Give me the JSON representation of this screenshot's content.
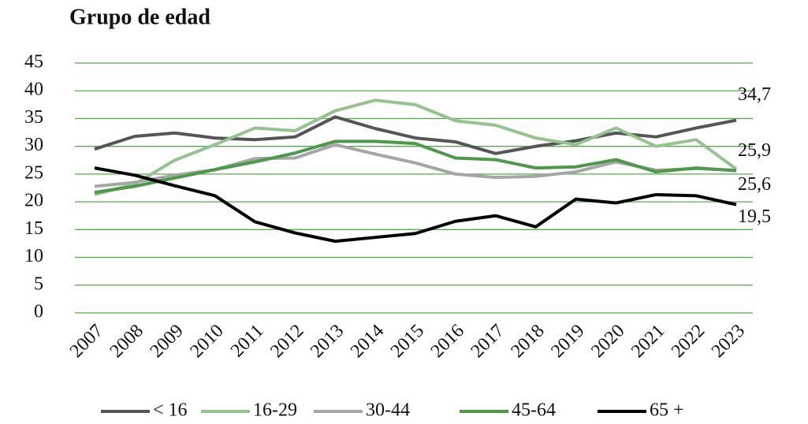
{
  "chart_data": {
    "type": "line",
    "title": "Grupo de edad",
    "categories": [
      "2007",
      "2008",
      "2009",
      "2010",
      "2011",
      "2012",
      "2013",
      "2014",
      "2015",
      "2016",
      "2017",
      "2018",
      "2019",
      "2020",
      "2021",
      "2022",
      "2023"
    ],
    "series": [
      {
        "name": "< 16",
        "color": "#555555",
        "values": [
          29.5,
          31.8,
          32.4,
          31.5,
          31.2,
          31.7,
          35.3,
          33.2,
          31.5,
          30.8,
          28.7,
          30.0,
          31.0,
          32.4,
          31.7,
          33.3,
          34.7
        ],
        "value_labels": [
          null,
          null,
          null,
          null,
          null,
          null,
          null,
          null,
          null,
          null,
          null,
          null,
          null,
          null,
          null,
          null,
          "34,7"
        ]
      },
      {
        "name": "16-29",
        "color": "#93c48e",
        "values": [
          21.3,
          23.2,
          27.5,
          30.3,
          33.3,
          32.8,
          36.4,
          38.3,
          37.5,
          34.6,
          33.8,
          31.5,
          30.3,
          33.3,
          30.0,
          31.2,
          25.9
        ],
        "value_labels": [
          null,
          null,
          null,
          null,
          null,
          null,
          null,
          null,
          null,
          null,
          null,
          null,
          null,
          null,
          null,
          null,
          "25,9"
        ]
      },
      {
        "name": "30-44",
        "color": "#a6a6a6",
        "values": [
          22.8,
          23.5,
          24.8,
          25.8,
          27.8,
          27.9,
          30.3,
          28.6,
          27.0,
          25.0,
          24.4,
          24.6,
          25.4,
          27.2,
          25.7,
          26.0,
          25.7
        ]
      },
      {
        "name": "45-64",
        "color": "#4a9a48",
        "values": [
          21.7,
          22.8,
          24.3,
          25.8,
          27.2,
          28.8,
          30.9,
          30.9,
          30.5,
          27.9,
          27.6,
          26.1,
          26.3,
          27.6,
          25.4,
          26.1,
          25.6
        ],
        "value_labels": [
          null,
          null,
          null,
          null,
          null,
          null,
          null,
          null,
          null,
          null,
          null,
          null,
          null,
          null,
          null,
          null,
          "25,6"
        ]
      },
      {
        "name": "65 +",
        "color": "#000000",
        "values": [
          26.1,
          24.8,
          22.9,
          21.1,
          16.4,
          14.4,
          12.9,
          13.6,
          14.3,
          16.5,
          17.5,
          15.5,
          20.5,
          19.8,
          21.3,
          21.1,
          19.5
        ],
        "value_labels": [
          null,
          null,
          null,
          null,
          null,
          null,
          null,
          null,
          null,
          null,
          null,
          null,
          null,
          null,
          null,
          null,
          "19,5"
        ]
      }
    ],
    "ylim": [
      0,
      45
    ],
    "yticks": [
      0,
      5,
      10,
      15,
      20,
      25,
      30,
      35,
      40,
      45
    ],
    "grid": true,
    "grid_color": "#5aa84f",
    "legend": "bottom"
  }
}
